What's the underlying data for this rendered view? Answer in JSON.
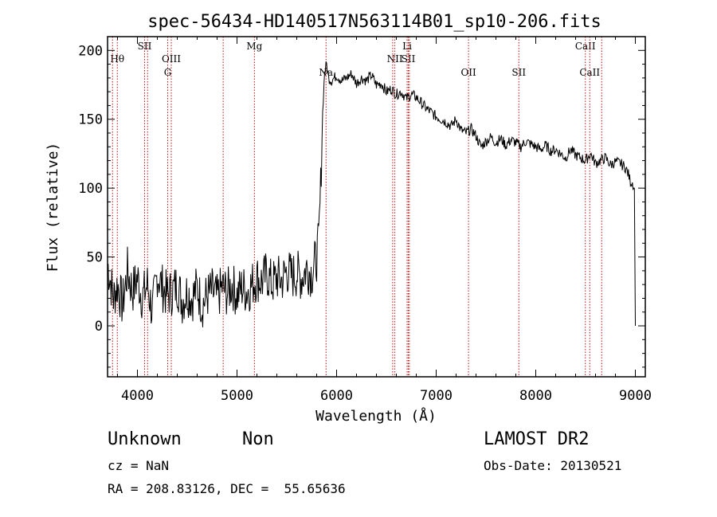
{
  "chart_data": {
    "type": "line",
    "title": "spec-56434-HD140517N563114B01_sp10-206.fits",
    "xlabel": "Wavelength (Å)",
    "ylabel": "Flux (relative)",
    "xlim": [
      3700,
      9100
    ],
    "ylim": [
      -37,
      210
    ],
    "xticks": [
      4000,
      5000,
      6000,
      7000,
      8000,
      9000
    ],
    "yticks": [
      0,
      50,
      100,
      150,
      200
    ],
    "grid": false,
    "series": [
      {
        "x": [
          3700,
          3760,
          3800,
          3850,
          3900,
          3950,
          4000,
          4050,
          4100,
          4150,
          4200,
          4250,
          4300,
          4350,
          4400,
          4450,
          4500,
          4550,
          4600,
          4650,
          4700,
          4750,
          4800,
          4850,
          4900,
          4950,
          5000,
          5050,
          5100,
          5150,
          5200,
          5250,
          5300,
          5350,
          5400,
          5450,
          5500,
          5550,
          5600,
          5650,
          5700,
          5750,
          5780,
          5800,
          5820,
          5840,
          5860,
          5880,
          5900,
          5920,
          5950,
          6000,
          6050,
          6100,
          6150,
          6200,
          6250,
          6300,
          6350,
          6400,
          6450,
          6500,
          6550,
          6600,
          6650,
          6700,
          6750,
          6800,
          6850,
          6900,
          6950,
          7000,
          7050,
          7100,
          7150,
          7200,
          7250,
          7300,
          7350,
          7400,
          7450,
          7500,
          7550,
          7600,
          7650,
          7700,
          7750,
          7800,
          7850,
          7900,
          7950,
          8000,
          8050,
          8100,
          8150,
          8200,
          8250,
          8300,
          8350,
          8400,
          8450,
          8500,
          8550,
          8600,
          8650,
          8700,
          8750,
          8800,
          8850,
          8900,
          8930,
          8950,
          8970,
          8990,
          9000
        ],
        "y": [
          45,
          20,
          30,
          15,
          40,
          25,
          35,
          20,
          30,
          10,
          38,
          28,
          22,
          25,
          30,
          18,
          25,
          20,
          28,
          15,
          22,
          25,
          20,
          28,
          24,
          30,
          22,
          28,
          25,
          30,
          35,
          32,
          38,
          30,
          35,
          33,
          40,
          36,
          38,
          35,
          42,
          38,
          45,
          50,
          60,
          100,
          155,
          185,
          190,
          180,
          178,
          182,
          178,
          180,
          183,
          176,
          180,
          178,
          182,
          175,
          176,
          170,
          172,
          168,
          170,
          165,
          168,
          166,
          162,
          158,
          155,
          152,
          150,
          148,
          145,
          150,
          142,
          140,
          143,
          138,
          130,
          134,
          137,
          133,
          136,
          131,
          135,
          133,
          130,
          134,
          132,
          130,
          128,
          131,
          127,
          128,
          125,
          122,
          128,
          124,
          122,
          120,
          125,
          118,
          120,
          122,
          117,
          119,
          118,
          115,
          110,
          105,
          104,
          100,
          0
        ]
      }
    ],
    "line_markers": [
      {
        "label": "Hθ",
        "x": 3798,
        "row": 1
      },
      {
        "label": "SII",
        "x": 4072,
        "row": 0
      },
      {
        "label": "OIII",
        "x": 4340,
        "row": 1
      },
      {
        "label": "G",
        "x": 4304,
        "row": 2
      },
      {
        "label": "Mg",
        "x": 5175,
        "row": 0
      },
      {
        "label": "Na",
        "x": 5894,
        "row": 2
      },
      {
        "label": "Li",
        "x": 6708,
        "row": 0
      },
      {
        "label": "NII",
        "x": 6585,
        "row": 1
      },
      {
        "label": "SII",
        "x": 6720,
        "row": 1
      },
      {
        "label": "OII",
        "x": 7325,
        "row": 2
      },
      {
        "label": "SII",
        "x": 7830,
        "row": 2
      },
      {
        "label": "CaII",
        "x": 8498,
        "row": 0
      },
      {
        "label": "CaII",
        "x": 8542,
        "row": 2
      }
    ],
    "extra_marker_lines": [
      3750,
      4102,
      4861,
      6563,
      6731,
      8662
    ],
    "colors": {
      "spectrum": "#000000",
      "markers": "#c01010"
    }
  },
  "info": {
    "class_text": "Unknown",
    "subclass_text": "Non",
    "survey": "LAMOST DR2",
    "cz": "cz = NaN",
    "obs_date": "Obs-Date: 20130521",
    "coords": "RA = 208.83126, DEC =  55.65636"
  }
}
